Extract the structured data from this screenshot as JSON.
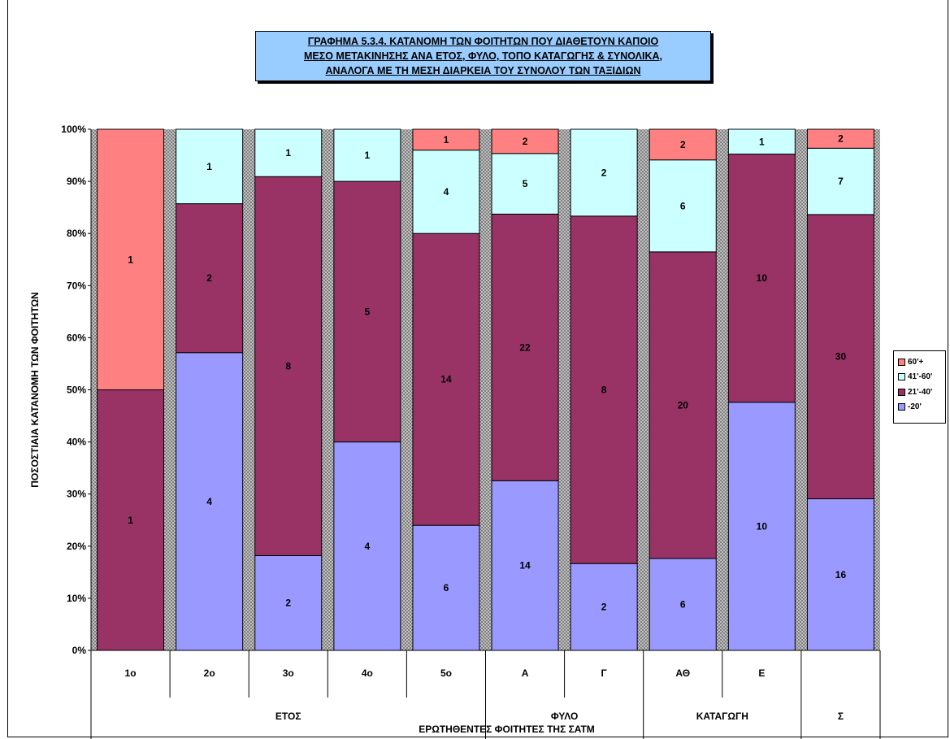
{
  "title": {
    "lines": [
      "ΓΡΑΦΗΜΑ 5.3.4. ΚΑΤΑΝΟΜΗ ΤΩΝ ΦΟΙΤΗΤΩΝ ΠΟΥ ΔΙΑΘΕΤΟΥΝ ΚΑΠΟΙΟ",
      "ΜΕΣΟ ΜΕΤΑΚΙΝΗΣΗΣ ΑΝΑ ΕΤΟΣ, ΦΥΛΟ, ΤΟΠΟ ΚΑΤΑΓΩΓΗΣ & ΣΥΝΟΛΙΚΑ,",
      "ΑΝΑΛΟΓΑ ΜΕ ΤΗ ΜΕΣΗ ΔΙΑΡΚΕΙΑ ΤΟΥ ΣΥΝΟΛΟΥ ΤΩΝ ΤΑΞΙΔΙΩΝ"
    ]
  },
  "chart_data": {
    "type": "bar",
    "stacked": "percent",
    "title": "ΓΡΑΦΗΜΑ 5.3.4. ΚΑΤΑΝΟΜΗ ΤΩΝ ΦΟΙΤΗΤΩΝ ΠΟΥ ΔΙΑΘΕΤΟΥΝ ΚΑΠΟΙΟ ΜΕΣΟ ΜΕΤΑΚΙΝΗΣΗΣ ΑΝΑ ΕΤΟΣ, ΦΥΛΟ, ΤΟΠΟ ΚΑΤΑΓΩΓΗΣ & ΣΥΝΟΛΙΚΑ, ΑΝΑΛΟΓΑ ΜΕ ΤΗ ΜΕΣΗ ΔΙΑΡΚΕΙΑ ΤΟΥ ΣΥΝΟΛΟΥ ΤΩΝ ΤΑΞΙΔΙΩΝ",
    "ylabel": "ΠΟΣΟΣΤΙΑΙΑ ΚΑΤΑΝΟΜΗ ΤΩΝ ΦΟΙΤΗΤΩΝ",
    "xlabel": "ΕΡΩΤΗΘΕΝΤΕΣ ΦΟΙΤΗΤΕΣ ΤΗΣ ΣΑΤΜ",
    "ylim": [
      0,
      100
    ],
    "yticks": [
      "0%",
      "10%",
      "20%",
      "30%",
      "40%",
      "50%",
      "60%",
      "70%",
      "80%",
      "90%",
      "100%"
    ],
    "categories": [
      "1ο",
      "2ο",
      "3ο",
      "4ο",
      "5ο",
      "Α",
      "Γ",
      "ΑΘ",
      "Ε",
      ""
    ],
    "groups": [
      {
        "label": "ΕΤΟΣ",
        "span": 5
      },
      {
        "label": "ΦΥΛΟ",
        "span": 2
      },
      {
        "label": "ΚΑΤΑΓΩΓΗ",
        "span": 2
      },
      {
        "label": "Σ",
        "span": 1
      }
    ],
    "series": [
      {
        "name": "-20'",
        "color": "#9999ff",
        "values": [
          0,
          4,
          2,
          4,
          6,
          14,
          2,
          6,
          10,
          16
        ]
      },
      {
        "name": "21'-40'",
        "color": "#993366",
        "values": [
          1,
          2,
          8,
          5,
          14,
          22,
          8,
          20,
          10,
          30
        ]
      },
      {
        "name": "41'-60'",
        "color": "#ccffff",
        "values": [
          0,
          1,
          1,
          1,
          4,
          5,
          2,
          6,
          1,
          7
        ]
      },
      {
        "name": "60'+",
        "color": "#ff8080",
        "values": [
          1,
          0,
          0,
          0,
          1,
          2,
          0,
          2,
          0,
          2
        ]
      }
    ],
    "legend_order": [
      "60'+",
      "41'-60'",
      "21'-40'",
      "-20'"
    ],
    "legend_position": "right",
    "grid": false,
    "plot_background": "gray-checker"
  }
}
